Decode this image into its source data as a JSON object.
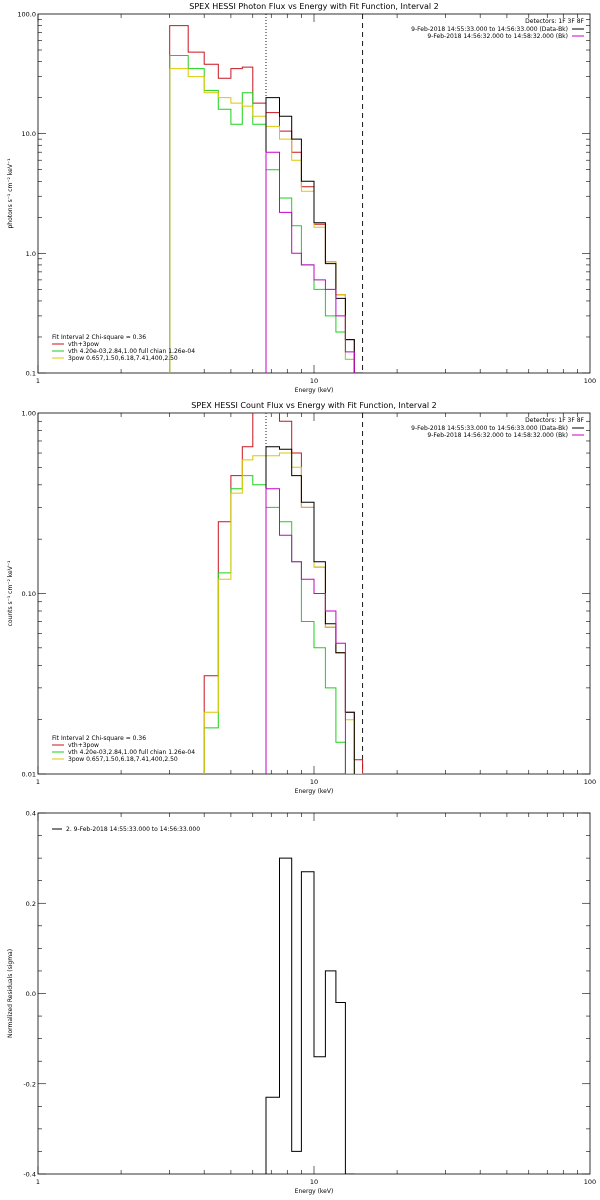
{
  "colors": {
    "red": "#c8141e",
    "green": "#19d219",
    "yellow": "#dcc800",
    "magenta": "#c800c8",
    "black": "#000000",
    "line_dotted": "#000000"
  },
  "chart_data": [
    {
      "type": "line",
      "title": "SPEX HESSI Photon Flux vs Energy with Fit Function, Interval 2",
      "xlabel": "Energy (keV)",
      "ylabel": "photons s⁻¹ cm⁻² keV⁻¹",
      "xscale": "log",
      "yscale": "log",
      "xlim": [
        1,
        100
      ],
      "ylim": [
        0.1,
        100
      ],
      "xticks": [
        "1",
        "10",
        "100"
      ],
      "yticks": [
        "0.1",
        "1.0",
        "10.0",
        "100.0"
      ],
      "vlines": [
        {
          "x": 6.7,
          "style": "dotted"
        },
        {
          "x": 15.0,
          "style": "dashed"
        }
      ],
      "legend_topright": {
        "header": "Detectors: 1F 3F 8F",
        "items": [
          {
            "text": "9-Feb-2018 14:55:33.000 to 14:56:33.000 (Data-Bk)",
            "color": "black"
          },
          {
            "text": "9-Feb-2018 14:56:32.000 to 14:58:32.000 (Bk)",
            "color": "magenta"
          }
        ]
      },
      "legend_bottomleft": {
        "header": "Fit Interval  2   Chi-square = 0.36",
        "items": [
          {
            "text": "vth+3pow",
            "color": "red"
          },
          {
            "text": "vth 4.20e-03,2.84,1.00   full chian 1.26e-04",
            "color": "green"
          },
          {
            "text": "3pow 0.657,1.50,6.18,7.41,400,2.50",
            "color": "yellow"
          }
        ]
      },
      "edges": [
        3,
        3.5,
        4,
        4.5,
        5,
        5.5,
        6,
        6.7,
        7.5,
        8.3,
        9,
        10,
        11,
        12,
        13,
        14,
        15,
        16
      ],
      "series": [
        {
          "color": "red",
          "values": [
            80,
            48,
            38,
            29,
            35,
            36,
            18,
            15,
            10.5,
            7,
            3.6,
            1.75,
            0.85,
            0.45,
            0.19,
            0.0,
            0.0
          ]
        },
        {
          "color": "green",
          "values": [
            45,
            35,
            23,
            16,
            12,
            22,
            12,
            5,
            2.9,
            1.7,
            0.8,
            0.5,
            0.3,
            0.22,
            0.13,
            0.0,
            0.0
          ]
        },
        {
          "color": "yellow",
          "values": [
            35,
            30,
            22,
            20,
            18,
            17,
            14,
            11.5,
            9,
            6,
            3.3,
            1.65,
            0.85,
            0.45,
            0.13,
            0.0,
            0.0
          ]
        },
        {
          "color": "black",
          "values": [
            0,
            0,
            0,
            0,
            0,
            0,
            0,
            20,
            14,
            9,
            4,
            1.8,
            0.82,
            0.42,
            0.19,
            0.1,
            0.0
          ]
        },
        {
          "color": "magenta",
          "values": [
            0,
            0,
            0,
            0,
            0,
            0,
            0,
            7,
            2.2,
            1.0,
            0.8,
            0.6,
            0.5,
            0.3,
            0.15,
            0.0,
            0.0
          ]
        }
      ]
    },
    {
      "type": "line",
      "title": "SPEX HESSI Count Flux vs Energy with Fit Function, Interval 2",
      "xlabel": "Energy (keV)",
      "ylabel": "counts s⁻¹ cm⁻² keV⁻¹",
      "xscale": "log",
      "yscale": "log",
      "xlim": [
        1,
        100
      ],
      "ylim": [
        0.01,
        1.0
      ],
      "xticks": [
        "1",
        "10",
        "100"
      ],
      "yticks": [
        "0.01",
        "0.10",
        "1.00"
      ],
      "vlines": [
        {
          "x": 6.7,
          "style": "dotted"
        },
        {
          "x": 15.0,
          "style": "dashed"
        }
      ],
      "legend_topright": {
        "header": "Detectors: 1F 3F 8F",
        "items": [
          {
            "text": "9-Feb-2018 14:55:33.000 to 14:56:33.000 (Data-Bk)",
            "color": "black"
          },
          {
            "text": "9-Feb-2018 14:56:32.000 to 14:58:32.000 (Bk)",
            "color": "magenta"
          }
        ]
      },
      "legend_bottomleft": {
        "header": "Fit Interval  2   Chi-square = 0.36",
        "items": [
          {
            "text": "vth+3pow",
            "color": "red"
          },
          {
            "text": "vth 4.20e-03,2.84,1.00   full chian 1.26e-04",
            "color": "green"
          },
          {
            "text": "3pow 0.657,1.50,6.18,7.41,400,2.50",
            "color": "yellow"
          }
        ]
      },
      "edges": [
        4,
        4.5,
        5,
        5.5,
        6,
        6.7,
        7.5,
        8.3,
        9,
        10,
        11,
        12,
        13,
        14,
        15,
        16,
        17.5
      ],
      "series": [
        {
          "color": "red",
          "values": [
            0.035,
            0.25,
            0.45,
            0.65,
            1.0,
            1.0,
            0.9,
            0.6,
            0.3,
            0.14,
            0.065,
            0.047,
            0.022,
            0.012,
            0.0,
            0.0
          ]
        },
        {
          "color": "green",
          "values": [
            0.018,
            0.13,
            0.38,
            0.45,
            0.4,
            0.3,
            0.25,
            0.15,
            0.07,
            0.05,
            0.03,
            0.015,
            0.01,
            0.0,
            0.0,
            0.0
          ]
        },
        {
          "color": "yellow",
          "values": [
            0.022,
            0.12,
            0.36,
            0.55,
            0.58,
            0.58,
            0.6,
            0.5,
            0.3,
            0.14,
            0.065,
            0.047,
            0.02,
            0.01,
            0.0,
            0.0
          ]
        },
        {
          "color": "black",
          "values": [
            0,
            0,
            0,
            0,
            0,
            0.65,
            0.63,
            0.45,
            0.32,
            0.15,
            0.068,
            0.047,
            0.022,
            0.0,
            0.0,
            0.0
          ]
        },
        {
          "color": "magenta",
          "values": [
            0,
            0,
            0,
            0,
            0,
            0.38,
            0.21,
            0.15,
            0.12,
            0.1,
            0.08,
            0.053,
            0.0,
            0.0,
            0.0,
            0.0
          ]
        }
      ]
    },
    {
      "type": "line",
      "title": "",
      "xlabel": "Energy (keV)",
      "ylabel": "Normalized Residuals (sigma)",
      "xscale": "log",
      "yscale": "linear",
      "xlim": [
        1,
        100
      ],
      "ylim": [
        -0.4,
        0.4
      ],
      "xticks": [
        "1",
        "10",
        "100"
      ],
      "yticks": [
        "-0.4",
        "-0.2",
        "0.0",
        "0.2",
        "0.4"
      ],
      "legend_topleft": {
        "items": [
          {
            "text": "2.  9-Feb-2018 14:55:33.000 to 14:56:33.000",
            "color": "black"
          }
        ]
      },
      "edges": [
        6.7,
        7.5,
        8.3,
        9,
        10,
        11,
        12,
        13,
        14,
        15
      ],
      "series": [
        {
          "color": "black",
          "values": [
            -0.23,
            0.3,
            -0.35,
            0.27,
            -0.14,
            0.05,
            -0.02,
            -0.4
          ]
        }
      ]
    }
  ]
}
